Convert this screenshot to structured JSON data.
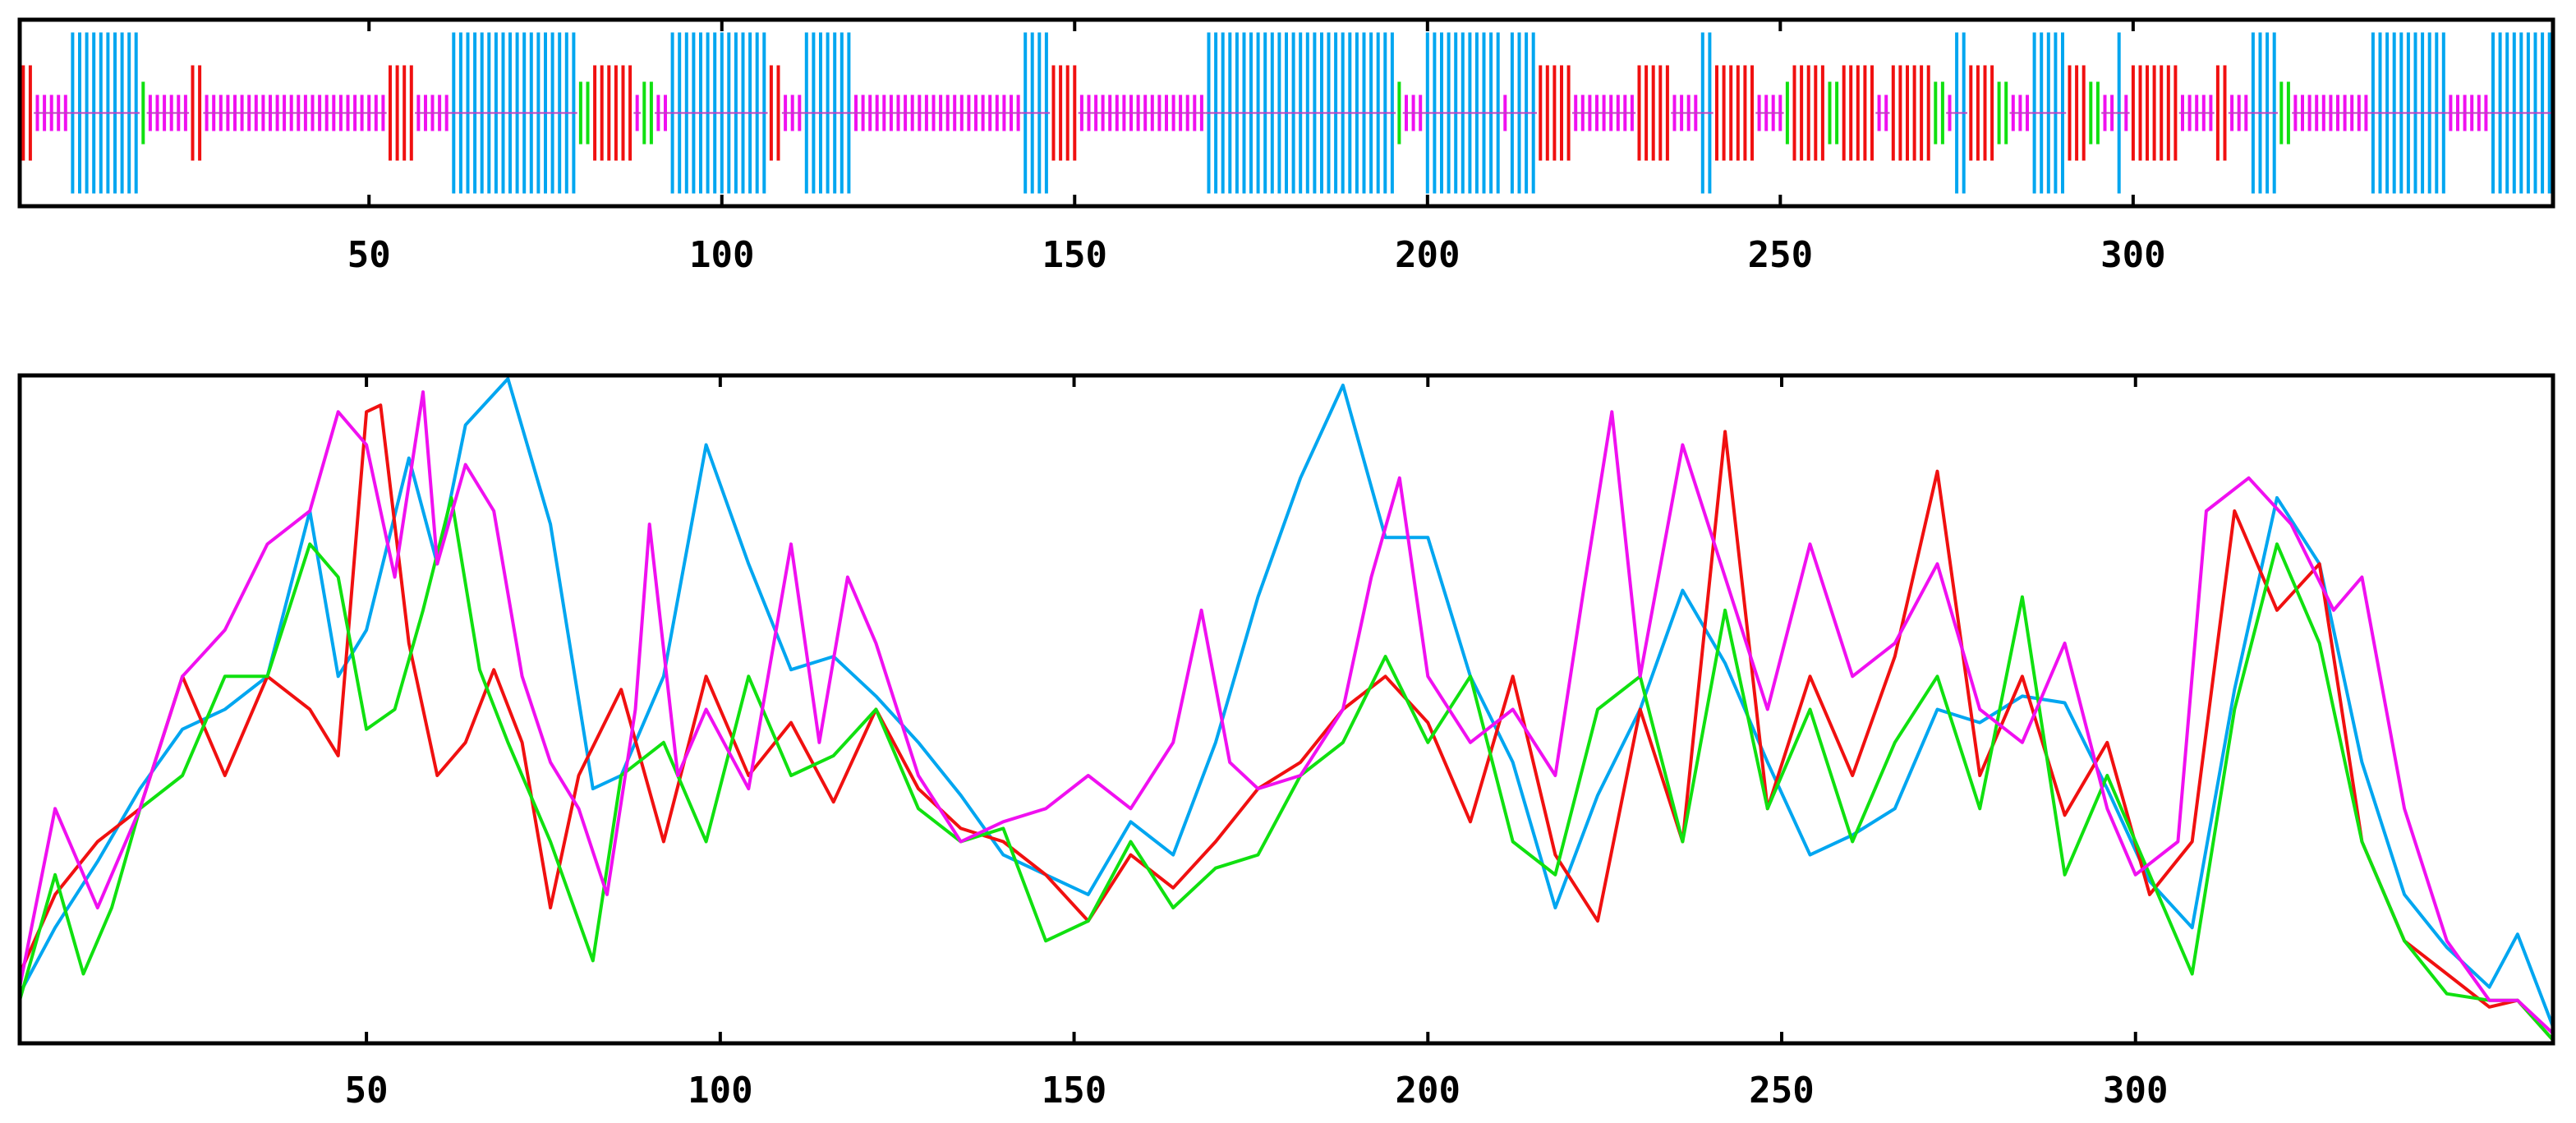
{
  "chart_data": [
    {
      "type": "table",
      "description_of_encoding": "secondary-structure track: each residue is a vertical bar colored by state",
      "xlim": [
        1,
        359
      ],
      "xticks": [
        50,
        100,
        150,
        200,
        250,
        300
      ],
      "states": {
        "H": {
          "color": "#00a6f0",
          "height": "full"
        },
        "E": {
          "color": "#f01010",
          "height": "medium"
        },
        "T": {
          "color": "#10e010",
          "height": "small"
        },
        "C": {
          "color": "#f010f0",
          "height": "thin"
        }
      },
      "segments": [
        {
          "state": "E",
          "start": 1,
          "end": 2
        },
        {
          "state": "C",
          "start": 3,
          "end": 7
        },
        {
          "state": "H",
          "start": 8,
          "end": 17
        },
        {
          "state": "T",
          "start": 18,
          "end": 18
        },
        {
          "state": "C",
          "start": 19,
          "end": 24
        },
        {
          "state": "E",
          "start": 25,
          "end": 26
        },
        {
          "state": "C",
          "start": 27,
          "end": 52
        },
        {
          "state": "E",
          "start": 53,
          "end": 56
        },
        {
          "state": "C",
          "start": 57,
          "end": 61
        },
        {
          "state": "H",
          "start": 62,
          "end": 79
        },
        {
          "state": "T",
          "start": 80,
          "end": 81
        },
        {
          "state": "E",
          "start": 82,
          "end": 87
        },
        {
          "state": "C",
          "start": 88,
          "end": 88
        },
        {
          "state": "T",
          "start": 89,
          "end": 90
        },
        {
          "state": "C",
          "start": 91,
          "end": 92
        },
        {
          "state": "H",
          "start": 93,
          "end": 106
        },
        {
          "state": "E",
          "start": 107,
          "end": 108
        },
        {
          "state": "C",
          "start": 109,
          "end": 111
        },
        {
          "state": "H",
          "start": 112,
          "end": 118
        },
        {
          "state": "C",
          "start": 119,
          "end": 142
        },
        {
          "state": "H",
          "start": 143,
          "end": 146
        },
        {
          "state": "E",
          "start": 147,
          "end": 150
        },
        {
          "state": "C",
          "start": 151,
          "end": 168
        },
        {
          "state": "H",
          "start": 169,
          "end": 195
        },
        {
          "state": "T",
          "start": 196,
          "end": 196
        },
        {
          "state": "C",
          "start": 197,
          "end": 199
        },
        {
          "state": "H",
          "start": 200,
          "end": 210
        },
        {
          "state": "C",
          "start": 211,
          "end": 211
        },
        {
          "state": "H",
          "start": 212,
          "end": 215
        },
        {
          "state": "E",
          "start": 216,
          "end": 220
        },
        {
          "state": "C",
          "start": 221,
          "end": 229
        },
        {
          "state": "E",
          "start": 230,
          "end": 234
        },
        {
          "state": "C",
          "start": 235,
          "end": 238
        },
        {
          "state": "H",
          "start": 239,
          "end": 240
        },
        {
          "state": "E",
          "start": 241,
          "end": 246
        },
        {
          "state": "C",
          "start": 247,
          "end": 250
        },
        {
          "state": "T",
          "start": 251,
          "end": 251
        },
        {
          "state": "E",
          "start": 252,
          "end": 256
        },
        {
          "state": "T",
          "start": 257,
          "end": 258
        },
        {
          "state": "E",
          "start": 259,
          "end": 263
        },
        {
          "state": "C",
          "start": 264,
          "end": 265
        },
        {
          "state": "E",
          "start": 266,
          "end": 271
        },
        {
          "state": "T",
          "start": 272,
          "end": 273
        },
        {
          "state": "C",
          "start": 274,
          "end": 274
        },
        {
          "state": "H",
          "start": 275,
          "end": 276
        },
        {
          "state": "E",
          "start": 277,
          "end": 280
        },
        {
          "state": "T",
          "start": 281,
          "end": 282
        },
        {
          "state": "C",
          "start": 283,
          "end": 285
        },
        {
          "state": "H",
          "start": 286,
          "end": 290
        },
        {
          "state": "E",
          "start": 291,
          "end": 293
        },
        {
          "state": "T",
          "start": 294,
          "end": 295
        },
        {
          "state": "C",
          "start": 296,
          "end": 297
        },
        {
          "state": "H",
          "start": 298,
          "end": 298
        },
        {
          "state": "C",
          "start": 299,
          "end": 299
        },
        {
          "state": "E",
          "start": 300,
          "end": 306
        },
        {
          "state": "C",
          "start": 307,
          "end": 311
        },
        {
          "state": "E",
          "start": 312,
          "end": 313
        },
        {
          "state": "C",
          "start": 314,
          "end": 316
        },
        {
          "state": "H",
          "start": 317,
          "end": 320
        },
        {
          "state": "T",
          "start": 321,
          "end": 322
        },
        {
          "state": "C",
          "start": 323,
          "end": 333
        },
        {
          "state": "H",
          "start": 334,
          "end": 344
        },
        {
          "state": "C",
          "start": 345,
          "end": 350
        },
        {
          "state": "H",
          "start": 351,
          "end": 359
        }
      ]
    },
    {
      "type": "line",
      "xlim": [
        1,
        359
      ],
      "ylim": [
        0,
        1
      ],
      "xticks": [
        50,
        100,
        150,
        200,
        250,
        300
      ],
      "grid": false,
      "series": [
        {
          "color": "#00a6f0",
          "x": [
            1,
            6,
            12,
            18,
            24,
            30,
            36,
            42,
            46,
            50,
            56,
            60,
            64,
            70,
            76,
            82,
            86,
            92,
            98,
            104,
            110,
            116,
            122,
            128,
            134,
            140,
            146,
            152,
            158,
            164,
            170,
            176,
            182,
            188,
            194,
            200,
            206,
            212,
            218,
            224,
            230,
            236,
            242,
            248,
            254,
            260,
            266,
            272,
            278,
            284,
            290,
            296,
            302,
            308,
            314,
            320,
            326,
            332,
            338,
            344,
            350,
            354,
            359
          ],
          "y": [
            0.07,
            0.17,
            0.27,
            0.38,
            0.47,
            0.5,
            0.55,
            0.8,
            0.55,
            0.62,
            0.88,
            0.72,
            0.93,
            1.0,
            0.78,
            0.38,
            0.4,
            0.55,
            0.9,
            0.72,
            0.56,
            0.58,
            0.52,
            0.45,
            0.37,
            0.28,
            0.25,
            0.22,
            0.33,
            0.28,
            0.45,
            0.67,
            0.85,
            0.99,
            0.76,
            0.76,
            0.55,
            0.42,
            0.2,
            0.37,
            0.5,
            0.68,
            0.57,
            0.42,
            0.28,
            0.31,
            0.35,
            0.5,
            0.48,
            0.52,
            0.51,
            0.38,
            0.24,
            0.17,
            0.53,
            0.82,
            0.72,
            0.42,
            0.22,
            0.14,
            0.08,
            0.16,
            0.02
          ]
        },
        {
          "color": "#f01010",
          "x": [
            1,
            6,
            12,
            18,
            24,
            30,
            36,
            42,
            46,
            50,
            52,
            56,
            60,
            64,
            68,
            72,
            76,
            80,
            86,
            92,
            98,
            104,
            110,
            116,
            122,
            128,
            134,
            140,
            146,
            152,
            158,
            164,
            170,
            176,
            182,
            188,
            194,
            200,
            206,
            212,
            218,
            224,
            230,
            236,
            242,
            248,
            254,
            260,
            266,
            272,
            278,
            284,
            290,
            296,
            302,
            308,
            314,
            320,
            326,
            332,
            338,
            344,
            350,
            354,
            359
          ],
          "y": [
            0.1,
            0.22,
            0.3,
            0.35,
            0.55,
            0.4,
            0.55,
            0.5,
            0.43,
            0.95,
            0.96,
            0.6,
            0.4,
            0.45,
            0.56,
            0.45,
            0.2,
            0.4,
            0.53,
            0.3,
            0.55,
            0.4,
            0.48,
            0.36,
            0.5,
            0.38,
            0.32,
            0.3,
            0.25,
            0.18,
            0.28,
            0.23,
            0.3,
            0.38,
            0.42,
            0.5,
            0.55,
            0.48,
            0.33,
            0.55,
            0.28,
            0.18,
            0.5,
            0.3,
            0.92,
            0.35,
            0.55,
            0.4,
            0.58,
            0.86,
            0.4,
            0.55,
            0.34,
            0.45,
            0.22,
            0.3,
            0.8,
            0.65,
            0.72,
            0.3,
            0.15,
            0.1,
            0.05,
            0.06,
            0.0
          ]
        },
        {
          "color": "#10e010",
          "x": [
            1,
            6,
            10,
            14,
            18,
            24,
            30,
            36,
            42,
            46,
            50,
            54,
            58,
            62,
            66,
            70,
            76,
            82,
            86,
            92,
            98,
            104,
            110,
            116,
            122,
            128,
            134,
            140,
            146,
            152,
            158,
            164,
            170,
            176,
            182,
            188,
            194,
            200,
            206,
            212,
            218,
            224,
            230,
            236,
            242,
            248,
            254,
            260,
            266,
            272,
            278,
            284,
            290,
            296,
            302,
            308,
            314,
            320,
            326,
            332,
            338,
            344,
            350,
            354,
            359
          ],
          "y": [
            0.06,
            0.25,
            0.1,
            0.2,
            0.35,
            0.4,
            0.55,
            0.55,
            0.75,
            0.7,
            0.47,
            0.5,
            0.65,
            0.82,
            0.56,
            0.45,
            0.3,
            0.12,
            0.4,
            0.45,
            0.3,
            0.55,
            0.4,
            0.43,
            0.5,
            0.35,
            0.3,
            0.32,
            0.15,
            0.18,
            0.3,
            0.2,
            0.26,
            0.28,
            0.4,
            0.45,
            0.58,
            0.45,
            0.55,
            0.3,
            0.25,
            0.5,
            0.55,
            0.3,
            0.65,
            0.35,
            0.5,
            0.3,
            0.45,
            0.55,
            0.35,
            0.67,
            0.25,
            0.4,
            0.25,
            0.1,
            0.5,
            0.75,
            0.6,
            0.3,
            0.15,
            0.07,
            0.06,
            0.06,
            0.0
          ]
        },
        {
          "color": "#f010f0",
          "x": [
            1,
            6,
            12,
            18,
            24,
            30,
            36,
            42,
            46,
            50,
            54,
            58,
            60,
            64,
            68,
            72,
            76,
            80,
            84,
            88,
            90,
            94,
            98,
            104,
            110,
            114,
            118,
            122,
            128,
            134,
            140,
            146,
            152,
            158,
            164,
            168,
            172,
            176,
            182,
            188,
            192,
            196,
            200,
            206,
            212,
            218,
            222,
            226,
            230,
            236,
            242,
            248,
            254,
            260,
            266,
            272,
            278,
            284,
            290,
            296,
            300,
            306,
            310,
            316,
            322,
            328,
            332,
            338,
            344,
            350,
            354,
            359
          ],
          "y": [
            0.08,
            0.35,
            0.2,
            0.35,
            0.55,
            0.62,
            0.75,
            0.8,
            0.95,
            0.9,
            0.7,
            0.98,
            0.72,
            0.87,
            0.8,
            0.55,
            0.42,
            0.35,
            0.22,
            0.5,
            0.78,
            0.4,
            0.5,
            0.38,
            0.75,
            0.45,
            0.7,
            0.6,
            0.4,
            0.3,
            0.33,
            0.35,
            0.4,
            0.35,
            0.45,
            0.65,
            0.42,
            0.38,
            0.4,
            0.5,
            0.7,
            0.85,
            0.55,
            0.45,
            0.5,
            0.4,
            0.68,
            0.95,
            0.55,
            0.9,
            0.7,
            0.5,
            0.75,
            0.55,
            0.6,
            0.72,
            0.5,
            0.45,
            0.6,
            0.35,
            0.25,
            0.3,
            0.8,
            0.85,
            0.78,
            0.65,
            0.7,
            0.35,
            0.15,
            0.06,
            0.06,
            0.01
          ]
        }
      ]
    }
  ]
}
